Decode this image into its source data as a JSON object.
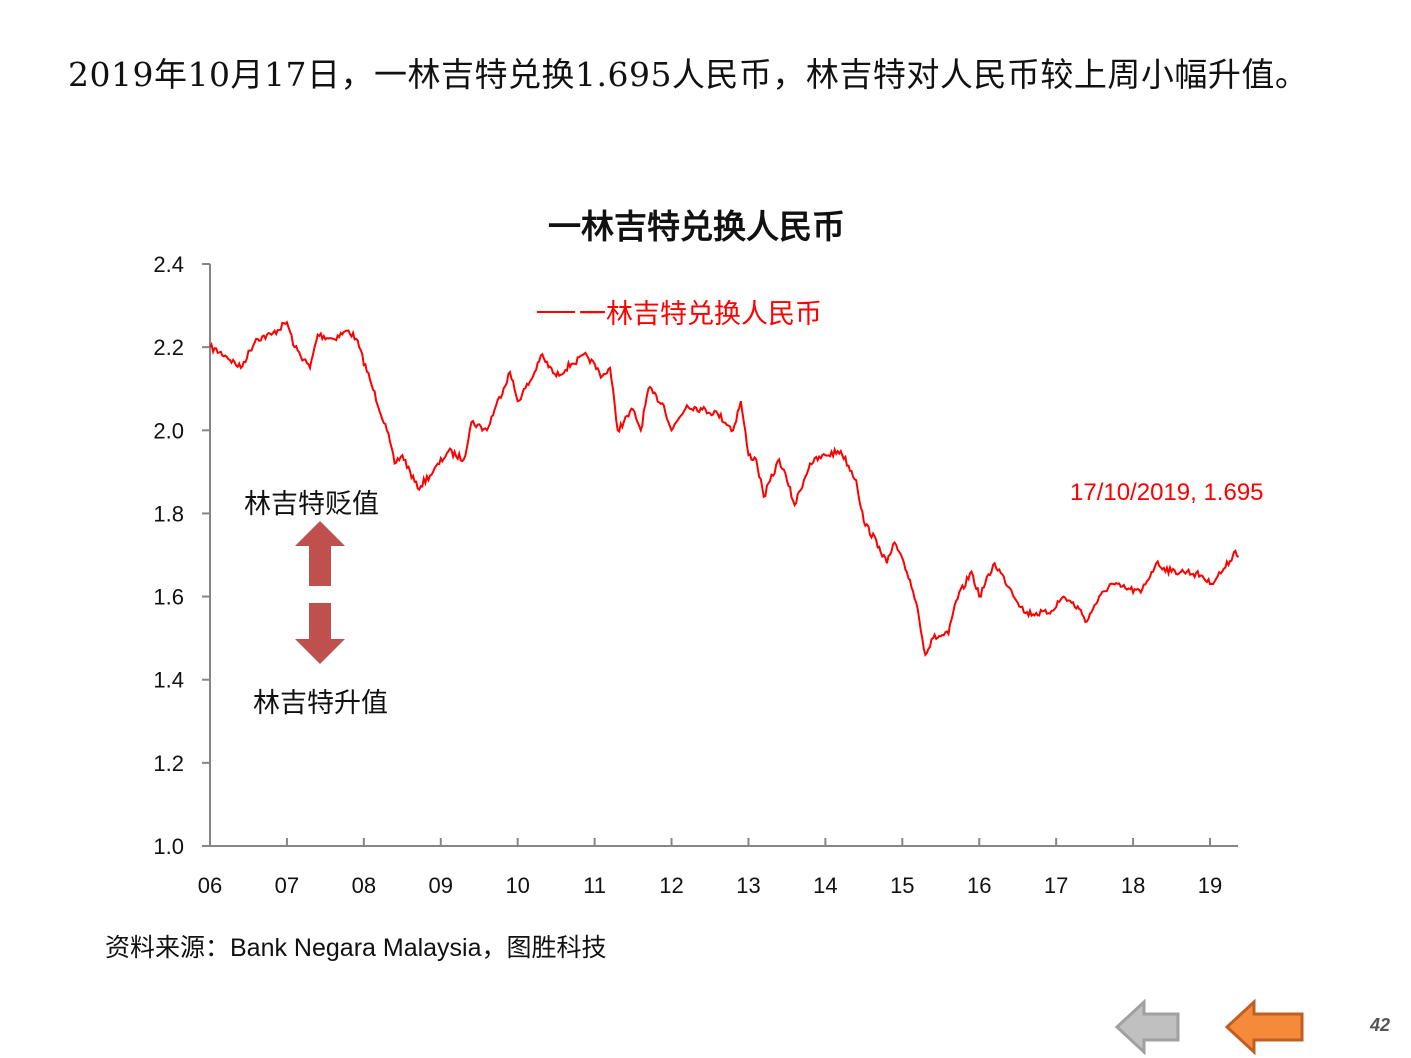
{
  "headline": "2019年10月17日，一林吉特兑换1.695人民币，林吉特对人民币较上周小幅升值。",
  "chart_data": {
    "type": "line",
    "title": "一林吉特兑换人民币",
    "xlabel": "",
    "ylabel": "",
    "ylim": [
      1.0,
      2.4
    ],
    "yticks": [
      "1.0",
      "1.2",
      "1.4",
      "1.6",
      "1.8",
      "2.0",
      "2.2",
      "2.4"
    ],
    "xlim": [
      2006,
      2019.37
    ],
    "xticks": [
      "06",
      "07",
      "08",
      "09",
      "10",
      "11",
      "12",
      "13",
      "14",
      "15",
      "16",
      "17",
      "18",
      "19"
    ],
    "grid": false,
    "legend_position": "top-center",
    "series": [
      {
        "name": "一林吉特兑换人民币",
        "color": "#ff0000",
        "x": [
          2006.0,
          2006.2,
          2006.4,
          2006.6,
          2006.8,
          2007.0,
          2007.1,
          2007.3,
          2007.4,
          2007.6,
          2007.8,
          2007.9,
          2008.1,
          2008.3,
          2008.4,
          2008.5,
          2008.7,
          2008.9,
          2009.1,
          2009.3,
          2009.4,
          2009.6,
          2009.7,
          2009.9,
          2010.0,
          2010.2,
          2010.3,
          2010.5,
          2010.7,
          2010.9,
          2011.1,
          2011.2,
          2011.3,
          2011.5,
          2011.6,
          2011.7,
          2011.9,
          2012.0,
          2012.2,
          2012.4,
          2012.6,
          2012.8,
          2012.9,
          2013.0,
          2013.1,
          2013.2,
          2013.4,
          2013.5,
          2013.6,
          2013.8,
          2014.0,
          2014.2,
          2014.4,
          2014.5,
          2014.7,
          2014.8,
          2014.9,
          2015.1,
          2015.2,
          2015.3,
          2015.4,
          2015.6,
          2015.7,
          2015.9,
          2016.0,
          2016.2,
          2016.4,
          2016.6,
          2016.9,
          2017.1,
          2017.3,
          2017.4,
          2017.5,
          2017.7,
          2017.9,
          2018.1,
          2018.3,
          2018.5,
          2018.7,
          2018.9,
          2019.0,
          2019.2,
          2019.3,
          2019.33,
          2019.37
        ],
        "values": [
          2.2,
          2.18,
          2.15,
          2.22,
          2.23,
          2.26,
          2.2,
          2.15,
          2.23,
          2.22,
          2.24,
          2.22,
          2.11,
          2.0,
          1.92,
          1.94,
          1.86,
          1.9,
          1.95,
          1.93,
          2.02,
          2.0,
          2.05,
          2.14,
          2.07,
          2.13,
          2.18,
          2.13,
          2.16,
          2.18,
          2.13,
          2.15,
          2.0,
          2.05,
          2.0,
          2.1,
          2.06,
          2.0,
          2.06,
          2.05,
          2.04,
          2.0,
          2.07,
          1.94,
          1.93,
          1.84,
          1.93,
          1.88,
          1.82,
          1.92,
          1.94,
          1.95,
          1.88,
          1.78,
          1.72,
          1.68,
          1.73,
          1.64,
          1.57,
          1.46,
          1.5,
          1.51,
          1.59,
          1.66,
          1.6,
          1.68,
          1.62,
          1.56,
          1.56,
          1.6,
          1.57,
          1.54,
          1.58,
          1.63,
          1.62,
          1.61,
          1.68,
          1.66,
          1.66,
          1.65,
          1.63,
          1.67,
          1.7,
          1.71,
          1.695
        ]
      }
    ],
    "annotations": {
      "last_point": "17/10/2019, 1.695",
      "depreciation_label": "林吉特贬值",
      "appreciation_label": "林吉特升值"
    },
    "arrow_color": "#c0504d"
  },
  "source": "资料来源：Bank Negara Malaysia，图胜科技",
  "page_number": "42",
  "nav": {
    "prev_color": "#b0b0b0",
    "next_color": "#f58a3a"
  }
}
